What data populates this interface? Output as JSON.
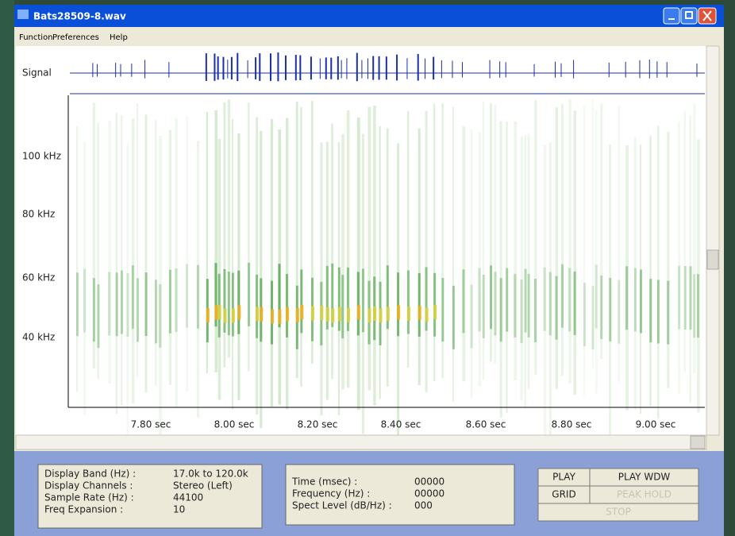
{
  "window": {
    "title": "Bats28509-8.wav"
  },
  "menu": [
    "Function",
    "Preferences",
    "Help"
  ],
  "signal_label": "Signal",
  "y_axis_labels": [
    "100 kHz",
    "80 kHz",
    "60 kHz",
    "40 kHz"
  ],
  "x_axis_labels": [
    "7.80 sec",
    "8.00 sec",
    "8.20 sec",
    "8.40 sec",
    "8.60 sec",
    "8.80 sec",
    "9.00 sec"
  ],
  "info": {
    "rows": [
      [
        "Display Band (Hz) :",
        "17.0k to 120.0k"
      ],
      [
        "Display Channels :",
        "Stereo (Left)"
      ],
      [
        "Sample Rate (Hz) :",
        "44100"
      ],
      [
        "Freq Expansion :",
        "10"
      ]
    ]
  },
  "readout": {
    "rows": [
      [
        "Time (msec) :",
        "00000"
      ],
      [
        "Frequency (Hz) :",
        "00000"
      ],
      [
        "Spect Level (dB/Hz) :",
        "000"
      ]
    ]
  },
  "buttons": [
    "PLAY",
    "PLAY WDW",
    "GRID",
    "PEAK HOLD",
    "STOP"
  ]
}
